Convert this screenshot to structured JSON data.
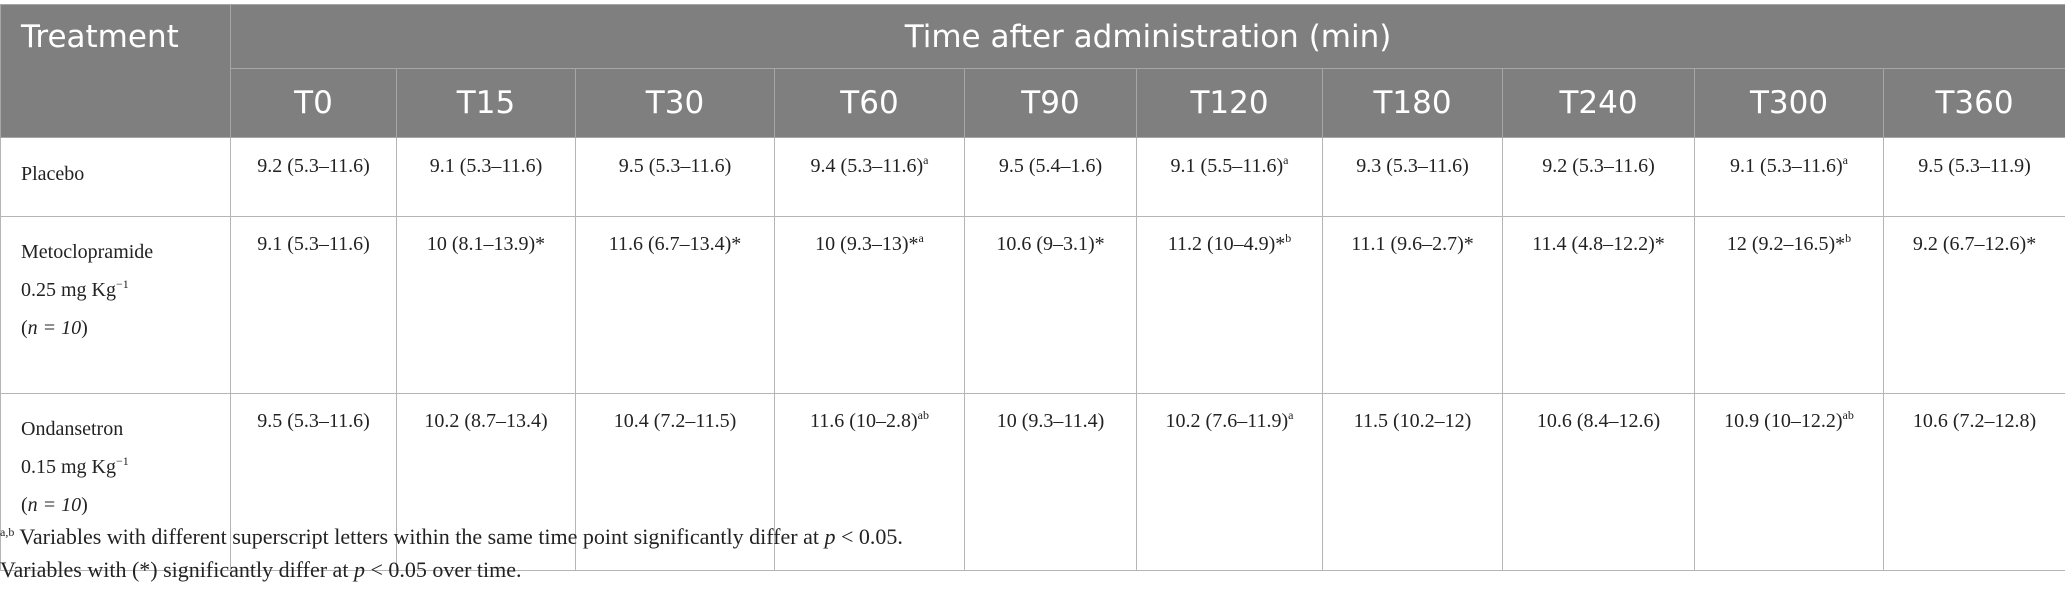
{
  "header": {
    "treatment": "Treatment",
    "group": "Time after administration (min)",
    "times": [
      "T0",
      "T15",
      "T30",
      "T60",
      "T90",
      "T120",
      "T180",
      "T240",
      "T300",
      "T360"
    ]
  },
  "rows": [
    {
      "label": [
        "Placebo"
      ],
      "cells": [
        {
          "v": "9.2 (5.3–11.6)",
          "s": ""
        },
        {
          "v": "9.1 (5.3–11.6)",
          "s": ""
        },
        {
          "v": "9.5 (5.3–11.6)",
          "s": ""
        },
        {
          "v": "9.4 (5.3–11.6)",
          "s": "a"
        },
        {
          "v": "9.5 (5.4–1.6)",
          "s": ""
        },
        {
          "v": "9.1 (5.5–11.6)",
          "s": "a"
        },
        {
          "v": "9.3 (5.3–11.6)",
          "s": ""
        },
        {
          "v": "9.2 (5.3–11.6)",
          "s": ""
        },
        {
          "v": "9.1 (5.3–11.6)",
          "s": "a"
        },
        {
          "v": "9.5 (5.3–11.9)",
          "s": ""
        }
      ]
    },
    {
      "label": [
        "Metoclopramide",
        "0.25 mg Kg",
        "n = 10"
      ],
      "cells": [
        {
          "v": "9.1 (5.3–11.6)",
          "s": ""
        },
        {
          "v": "10 (8.1–13.9)*",
          "s": ""
        },
        {
          "v": "11.6 (6.7–13.4)*",
          "s": ""
        },
        {
          "v": "10 (9.3–13)*",
          "s": "a"
        },
        {
          "v": "10.6 (9–3.1)*",
          "s": ""
        },
        {
          "v": "11.2 (10–4.9)*",
          "s": "b"
        },
        {
          "v": "11.1 (9.6–2.7)*",
          "s": ""
        },
        {
          "v": "11.4 (4.8–12.2)*",
          "s": ""
        },
        {
          "v": "12 (9.2–16.5)*",
          "s": "b"
        },
        {
          "v": "9.2 (6.7–12.6)*",
          "s": ""
        }
      ]
    },
    {
      "label": [
        "Ondansetron",
        "0.15 mg Kg",
        "n = 10"
      ],
      "cells": [
        {
          "v": "9.5 (5.3–11.6)",
          "s": ""
        },
        {
          "v": "10.2 (8.7–13.4)",
          "s": ""
        },
        {
          "v": "10.4 (7.2–11.5)",
          "s": ""
        },
        {
          "v": "11.6 (10–2.8)",
          "s": "ab"
        },
        {
          "v": "10 (9.3–11.4)",
          "s": ""
        },
        {
          "v": "10.2 (7.6–11.9)",
          "s": "a"
        },
        {
          "v": "11.5 (10.2–12)",
          "s": ""
        },
        {
          "v": "10.6 (8.4–12.6)",
          "s": ""
        },
        {
          "v": "10.9 (10–12.2)",
          "s": "ab"
        },
        {
          "v": "10.6 (7.2–12.8)",
          "s": ""
        }
      ]
    }
  ],
  "dose_exponent": "−1",
  "notes": {
    "n1_sup": "a,b",
    "n1_text": " Variables with different superscript letters within the same time point significantly differ at ",
    "p": "p",
    "threshold": " < 0.05.",
    "n2_text": "Variables with (*) significantly differ at ",
    "n2_tail": " < 0.05 over time."
  }
}
